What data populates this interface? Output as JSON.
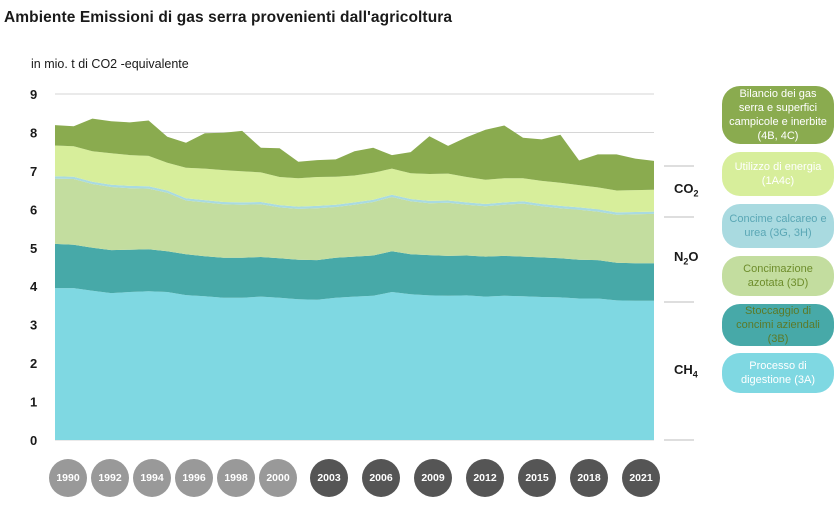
{
  "title": "Ambiente Emissioni di gas serra provenienti dall'agricoltura",
  "subtitle": "in mio. t di CO2 -equivalente",
  "chart_data": {
    "type": "area",
    "stacked": true,
    "title": "Ambiente Emissioni di gas serra provenienti dall'agricoltura",
    "ylabel": "in mio. t di CO2 -equivalente",
    "ylim": [
      0,
      9
    ],
    "yticks": [
      "0",
      "1",
      "2",
      "3",
      "4",
      "5",
      "6",
      "7",
      "8",
      "9"
    ],
    "x": [
      1990,
      1991,
      1992,
      1993,
      1994,
      1995,
      1996,
      1997,
      1998,
      1999,
      2000,
      2001,
      2002,
      2003,
      2004,
      2005,
      2006,
      2007,
      2008,
      2009,
      2010,
      2011,
      2012,
      2013,
      2014,
      2015,
      2016,
      2017,
      2018,
      2019,
      2020,
      2021,
      2022
    ],
    "series": [
      {
        "name": "Processo di digestione (3A)",
        "color": "#7fd8e2",
        "values": [
          3.95,
          3.95,
          3.88,
          3.82,
          3.85,
          3.87,
          3.85,
          3.77,
          3.74,
          3.7,
          3.7,
          3.73,
          3.7,
          3.66,
          3.65,
          3.7,
          3.73,
          3.75,
          3.85,
          3.79,
          3.76,
          3.75,
          3.76,
          3.73,
          3.75,
          3.74,
          3.72,
          3.71,
          3.68,
          3.68,
          3.63,
          3.62,
          3.62
        ]
      },
      {
        "name": "Stoccaggio di concimi aziendali (3B)",
        "color": "#47a9a8",
        "values": [
          1.15,
          1.13,
          1.12,
          1.12,
          1.1,
          1.09,
          1.06,
          1.06,
          1.04,
          1.04,
          1.04,
          1.03,
          1.03,
          1.03,
          1.03,
          1.04,
          1.04,
          1.05,
          1.06,
          1.04,
          1.05,
          1.04,
          1.04,
          1.04,
          1.04,
          1.03,
          1.03,
          1.02,
          1.01,
          1.0,
          0.98,
          0.98,
          0.98
        ]
      },
      {
        "name": "Concimazione azotata (3D)",
        "color": "#c3dd9f",
        "values": [
          1.7,
          1.71,
          1.66,
          1.64,
          1.6,
          1.58,
          1.52,
          1.4,
          1.4,
          1.39,
          1.38,
          1.37,
          1.32,
          1.32,
          1.35,
          1.32,
          1.35,
          1.39,
          1.41,
          1.38,
          1.35,
          1.38,
          1.32,
          1.31,
          1.33,
          1.38,
          1.33,
          1.3,
          1.3,
          1.26,
          1.25,
          1.27,
          1.28
        ]
      },
      {
        "name": "Concime calcareo e urea (3G, 3H)",
        "color": "#a9dae0",
        "values": [
          0.06,
          0.06,
          0.06,
          0.06,
          0.06,
          0.06,
          0.06,
          0.06,
          0.06,
          0.06,
          0.06,
          0.06,
          0.06,
          0.06,
          0.06,
          0.06,
          0.06,
          0.06,
          0.06,
          0.06,
          0.06,
          0.06,
          0.06,
          0.06,
          0.06,
          0.06,
          0.06,
          0.06,
          0.06,
          0.06,
          0.06,
          0.06,
          0.06
        ]
      },
      {
        "name": "Utilizzo di energia (1A4c)",
        "color": "#d7ee9b",
        "values": [
          0.8,
          0.79,
          0.79,
          0.82,
          0.8,
          0.79,
          0.72,
          0.79,
          0.82,
          0.83,
          0.81,
          0.77,
          0.73,
          0.74,
          0.75,
          0.73,
          0.7,
          0.7,
          0.68,
          0.67,
          0.7,
          0.7,
          0.66,
          0.63,
          0.63,
          0.6,
          0.6,
          0.6,
          0.58,
          0.57,
          0.57,
          0.57,
          0.57
        ]
      },
      {
        "name": "Bilancio dei gas serra e superfici campicole e inerbite (4B, 4C)",
        "color": "#8aab4f",
        "values": [
          0.53,
          0.52,
          0.85,
          0.83,
          0.85,
          0.92,
          0.68,
          0.65,
          0.92,
          0.97,
          1.05,
          0.64,
          0.75,
          0.43,
          0.44,
          0.45,
          0.63,
          0.65,
          0.35,
          0.55,
          0.98,
          0.72,
          1.04,
          1.3,
          1.37,
          1.05,
          1.08,
          1.25,
          0.64,
          0.86,
          0.94,
          0.82,
          0.75
        ]
      }
    ],
    "groups": [
      {
        "label": "CO",
        "sub": "2"
      },
      {
        "label": "N",
        "sub": "2",
        "suffix": "O"
      },
      {
        "label": "CH",
        "sub": "4"
      }
    ],
    "year_labels": [
      {
        "year": "1990",
        "style": "light"
      },
      {
        "year": "1992",
        "style": "light"
      },
      {
        "year": "1994",
        "style": "light"
      },
      {
        "year": "1996",
        "style": "light"
      },
      {
        "year": "1998",
        "style": "light"
      },
      {
        "year": "2000",
        "style": "light"
      },
      {
        "year": "2003",
        "style": "dark"
      },
      {
        "year": "2006",
        "style": "dark"
      },
      {
        "year": "2009",
        "style": "dark"
      },
      {
        "year": "2012",
        "style": "dark"
      },
      {
        "year": "2015",
        "style": "dark"
      },
      {
        "year": "2018",
        "style": "dark"
      },
      {
        "year": "2021",
        "style": "dark"
      }
    ],
    "legend_text_colors": [
      "#ffffff",
      "#5c7a28",
      "#6e8d2c",
      "#5aa7b5",
      "#ffffff",
      "#ffffff"
    ],
    "year_colors": {
      "light": "#999999",
      "dark": "#555555"
    }
  }
}
